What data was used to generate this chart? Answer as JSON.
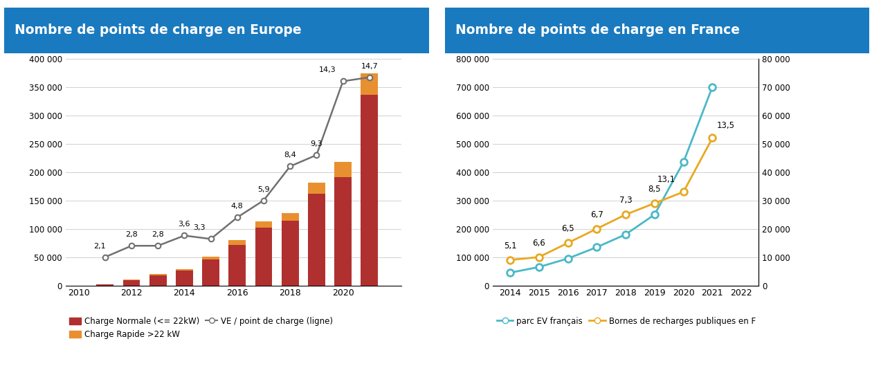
{
  "left_title": "Nombre de points de charge en Europe",
  "right_title": "Nombre de points de charge en France",
  "title_bg_color": "#1a7abf",
  "title_text_color": "#ffffff",
  "left": {
    "bar_years": [
      2011,
      2012,
      2013,
      2014,
      2015,
      2016,
      2017,
      2018,
      2019,
      2020,
      2021
    ],
    "charge_normale": [
      1800,
      9500,
      17500,
      26000,
      46000,
      71000,
      102000,
      114000,
      162000,
      191000,
      336000
    ],
    "charge_rapide": [
      400,
      1300,
      2200,
      3200,
      4800,
      8500,
      11500,
      13500,
      19500,
      26500,
      37500
    ],
    "line_years": [
      2011,
      2012,
      2013,
      2014,
      2015,
      2016,
      2017,
      2018,
      2019,
      2020,
      2021
    ],
    "line_values": [
      50000,
      70000,
      70000,
      88000,
      82000,
      120000,
      150000,
      210000,
      230000,
      360000,
      367000
    ],
    "line_labels": [
      "2,1",
      "2,8",
      "2,8",
      "3,6",
      "3,3",
      "4,8",
      "5,9",
      "8,4",
      "9,3",
      "14,3",
      "14,7"
    ],
    "bar_color_normale": "#b03030",
    "bar_color_rapide": "#e89030",
    "line_color": "#707070",
    "ylim": [
      0,
      400000
    ],
    "yticks": [
      0,
      50000,
      100000,
      150000,
      200000,
      250000,
      300000,
      350000,
      400000
    ],
    "ytick_labels": [
      "0",
      "50 000",
      "100 000",
      "150 000",
      "200 000",
      "250 000",
      "300 000",
      "350 000",
      "400 000"
    ],
    "xticks": [
      2010,
      2012,
      2014,
      2016,
      2018,
      2020
    ],
    "legend_normale": "Charge Normale (<= 22kW)",
    "legend_rapide": "Charge Rapide >22 kW",
    "legend_line": "VE / point de charge (ligne)"
  },
  "right": {
    "years": [
      2014,
      2015,
      2016,
      2017,
      2018,
      2019,
      2020,
      2021
    ],
    "parc_ev": [
      45000,
      65000,
      95000,
      135000,
      180000,
      250000,
      435000,
      700000
    ],
    "bornes": [
      9000,
      10000,
      15000,
      20000,
      25000,
      29000,
      33000,
      52000
    ],
    "bornes_labels": [
      "5,1",
      "6,6",
      "6,5",
      "6,7",
      "7,3",
      "8,5",
      "13,1",
      "13,5"
    ],
    "parc_color": "#4ab8c8",
    "bornes_color": "#e8a820",
    "ylim_left": [
      0,
      800000
    ],
    "ylim_right": [
      0,
      80000
    ],
    "yticks_left": [
      0,
      100000,
      200000,
      300000,
      400000,
      500000,
      600000,
      700000,
      800000
    ],
    "ytick_labels_left": [
      "0",
      "100 000",
      "200 000",
      "300 000",
      "400 000",
      "500 000",
      "600 000",
      "700 000",
      "800 000"
    ],
    "yticks_right": [
      0,
      10000,
      20000,
      30000,
      40000,
      50000,
      60000,
      70000,
      80000
    ],
    "ytick_labels_right": [
      "0",
      "10 000",
      "20 000",
      "30 000",
      "40 000",
      "50 000",
      "60 000",
      "70 000",
      "80 000"
    ],
    "xticks": [
      2014,
      2015,
      2016,
      2017,
      2018,
      2019,
      2020,
      2021,
      2022
    ],
    "legend_parc": "parc EV français",
    "legend_bornes": "Bornes de recharges publiques en F"
  },
  "bg_color": "#ffffff",
  "grid_color": "#d0d0d0"
}
